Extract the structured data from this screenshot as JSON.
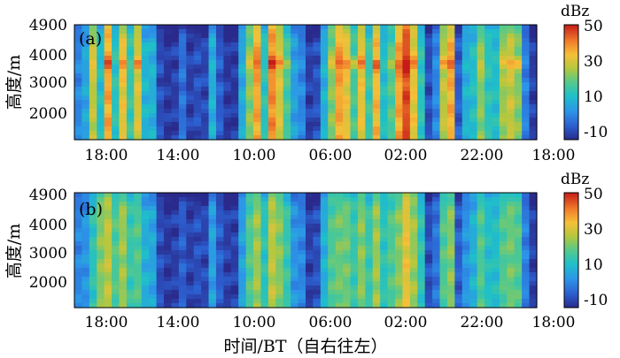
{
  "chart_data": [
    {
      "type": "heatmap",
      "panel_label": "(a)",
      "ylabel": "高度/m",
      "xlabel": "",
      "ylim": [
        1100,
        4900
      ],
      "y_ticks": [
        "4900",
        "4000",
        "3000",
        "2000"
      ],
      "x_ticks": [
        "18:00",
        "14:00",
        "10:00",
        "06:00",
        "02:00",
        "22:00",
        "18:00"
      ],
      "colorbar": {
        "unit": "dBz",
        "range": [
          -15,
          50
        ],
        "ticks": [
          "50",
          "30",
          "10",
          "-10"
        ]
      },
      "bright_band_height": 3600,
      "profiles": [
        -2,
        3,
        25,
        8,
        35,
        10,
        30,
        12,
        28,
        6,
        5,
        -10,
        -13,
        -12,
        -5,
        -12,
        -10,
        -11,
        5,
        -8,
        -13,
        -13,
        4,
        20,
        35,
        10,
        38,
        28,
        14,
        2,
        -2,
        -12,
        -10,
        5,
        20,
        35,
        30,
        14,
        30,
        12,
        33,
        8,
        15,
        35,
        45,
        30,
        10,
        -10,
        -2,
        25,
        34,
        -8,
        5,
        8,
        20,
        10,
        8,
        22,
        26,
        20,
        -3,
        -12
      ]
    },
    {
      "type": "heatmap",
      "panel_label": "(b)",
      "ylabel": "高度/m",
      "xlabel": "时间/BT（自右往左）",
      "ylim": [
        1100,
        4900
      ],
      "y_ticks": [
        "4900",
        "4000",
        "3000",
        "2000"
      ],
      "x_ticks": [
        "18:00",
        "14:00",
        "10:00",
        "06:00",
        "02:00",
        "22:00",
        "18:00"
      ],
      "colorbar": {
        "unit": "dBz",
        "range": [
          -15,
          50
        ],
        "ticks": [
          "50",
          "30",
          "10",
          "-10"
        ]
      },
      "bright_band_height": null,
      "profiles": [
        -2,
        0,
        10,
        20,
        25,
        15,
        22,
        12,
        15,
        5,
        3,
        -10,
        -13,
        -12,
        -8,
        -12,
        -10,
        -11,
        2,
        -8,
        -12,
        -12,
        2,
        15,
        22,
        10,
        25,
        20,
        12,
        0,
        -2,
        -12,
        -10,
        5,
        15,
        18,
        18,
        12,
        20,
        12,
        22,
        10,
        15,
        20,
        30,
        22,
        10,
        -10,
        -5,
        15,
        20,
        -8,
        0,
        5,
        15,
        8,
        8,
        15,
        18,
        15,
        -3,
        -12
      ]
    }
  ]
}
